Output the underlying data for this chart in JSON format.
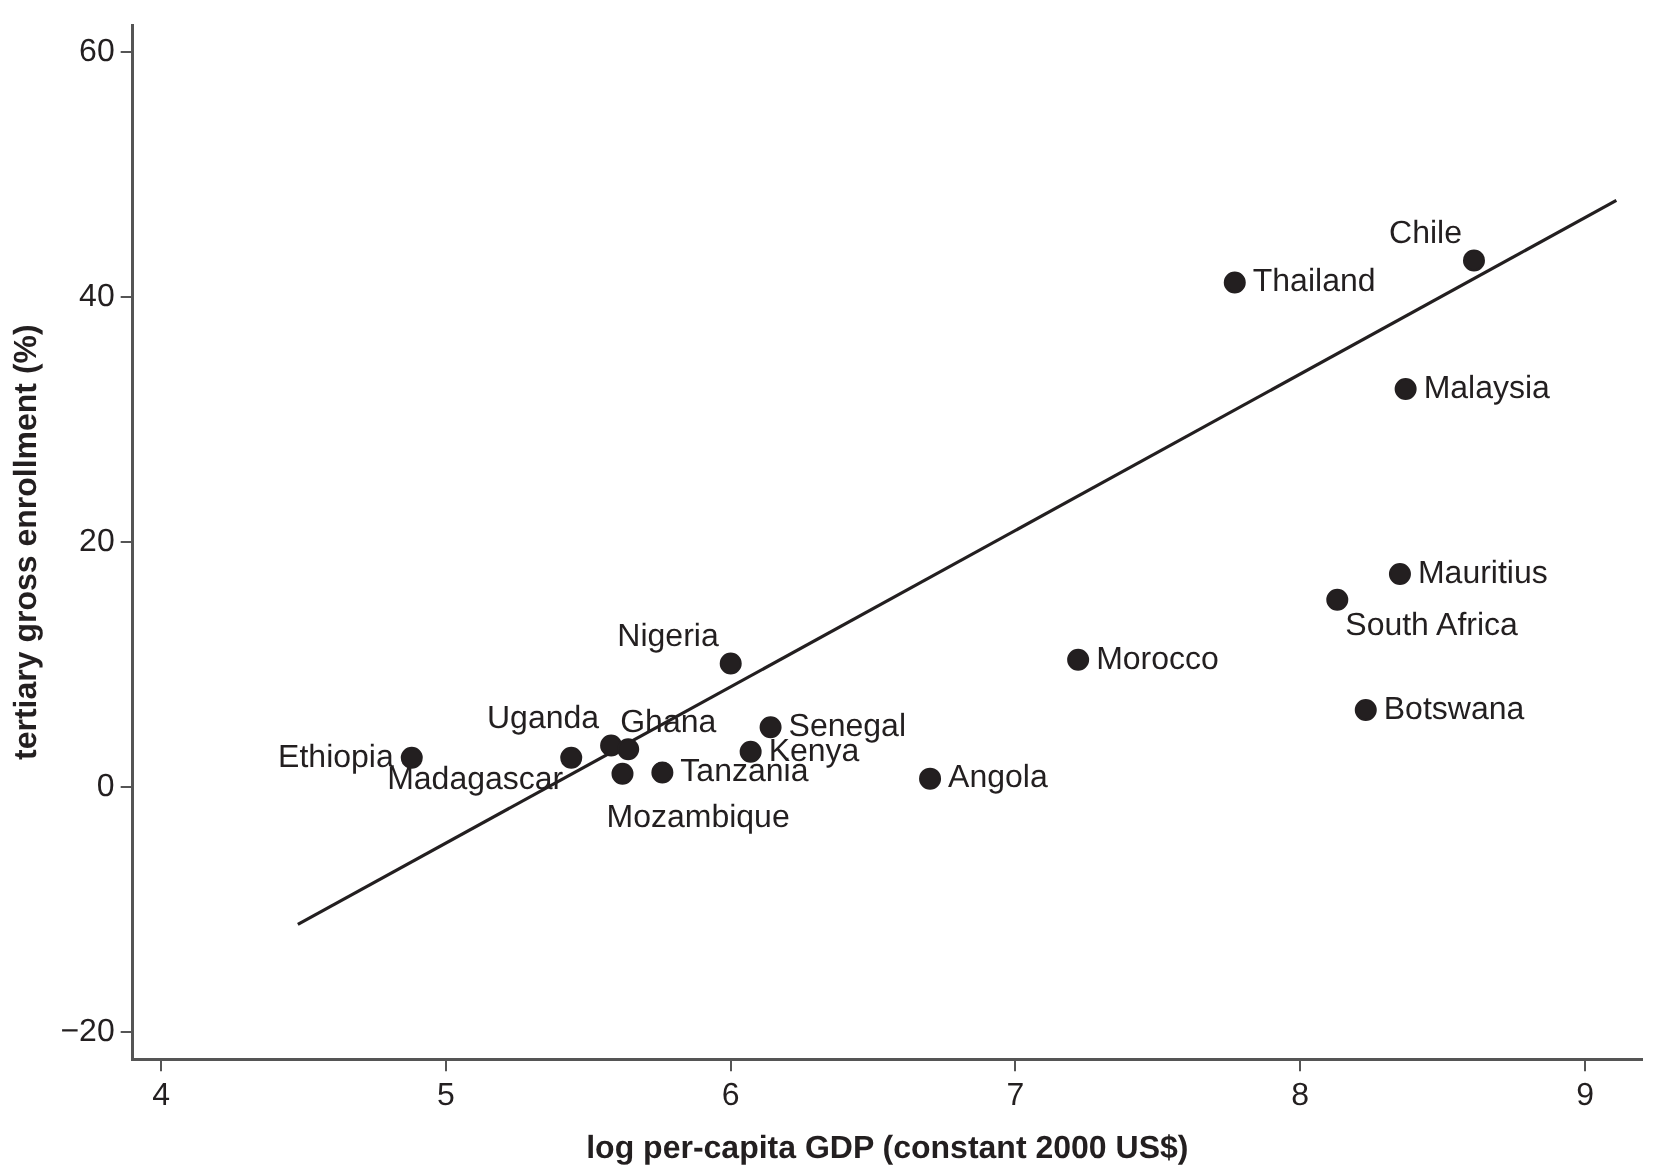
{
  "chart_data": {
    "type": "scatter",
    "xlabel": "log per-capita GDP (constant 2000 US$)",
    "ylabel": "tertiary gross enrollment (%)",
    "xlim": [
      3.9,
      9.2
    ],
    "xticks": [
      4,
      5,
      6,
      7,
      8,
      9
    ],
    "ylim": [
      -22.2,
      62.2
    ],
    "yticks": [
      {
        "value": -20,
        "label": "−20"
      },
      0,
      20,
      40,
      60
    ],
    "grid": false,
    "legend": false,
    "marker": "circle",
    "series": [
      {
        "color": "#231f20",
        "x": [
          4.88,
          5.44,
          5.58,
          5.64,
          5.62,
          5.76,
          6.07,
          6.14,
          6.0,
          6.7,
          7.22,
          7.77,
          8.61,
          8.37,
          8.35,
          8.13,
          8.23
        ],
        "values": [
          2.4,
          2.4,
          3.4,
          3.1,
          1.1,
          1.2,
          2.9,
          4.9,
          10.1,
          0.7,
          10.4,
          41.2,
          43.0,
          32.5,
          17.4,
          15.3,
          6.3
        ]
      },
      {
        "type": "line",
        "marker": "none",
        "color": "#231f20",
        "x": [
          4.48,
          9.11
        ],
        "values": [
          -11.2,
          47.9
        ]
      }
    ],
    "annotations": [
      {
        "text": "Ethiopia",
        "x": 4.88,
        "y": 2.4
      },
      {
        "text": "Madagascar",
        "x": 5.44,
        "y": 2.4
      },
      {
        "text": "Uganda",
        "x": 5.58,
        "y": 3.4
      },
      {
        "text": "Ghana",
        "x": 5.64,
        "y": 3.1
      },
      {
        "text": "Mozambique",
        "x": 5.62,
        "y": 1.1
      },
      {
        "text": "Tanzania",
        "x": 5.76,
        "y": 1.2
      },
      {
        "text": "Kenya",
        "x": 6.07,
        "y": 2.9
      },
      {
        "text": "Senegal",
        "x": 6.14,
        "y": 4.9
      },
      {
        "text": "Nigeria",
        "x": 6.0,
        "y": 10.1
      },
      {
        "text": "Angola",
        "x": 6.7,
        "y": 0.7
      },
      {
        "text": "Morocco",
        "x": 7.22,
        "y": 10.4
      },
      {
        "text": "Thailand",
        "x": 7.77,
        "y": 41.2
      },
      {
        "text": "Chile",
        "x": 8.61,
        "y": 43.0
      },
      {
        "text": "Malaysia",
        "x": 8.37,
        "y": 32.5
      },
      {
        "text": "Mauritius",
        "x": 8.35,
        "y": 17.4
      },
      {
        "text": "South Africa",
        "x": 8.13,
        "y": 15.3
      },
      {
        "text": "Botswana",
        "x": 8.23,
        "y": 6.3
      }
    ]
  }
}
